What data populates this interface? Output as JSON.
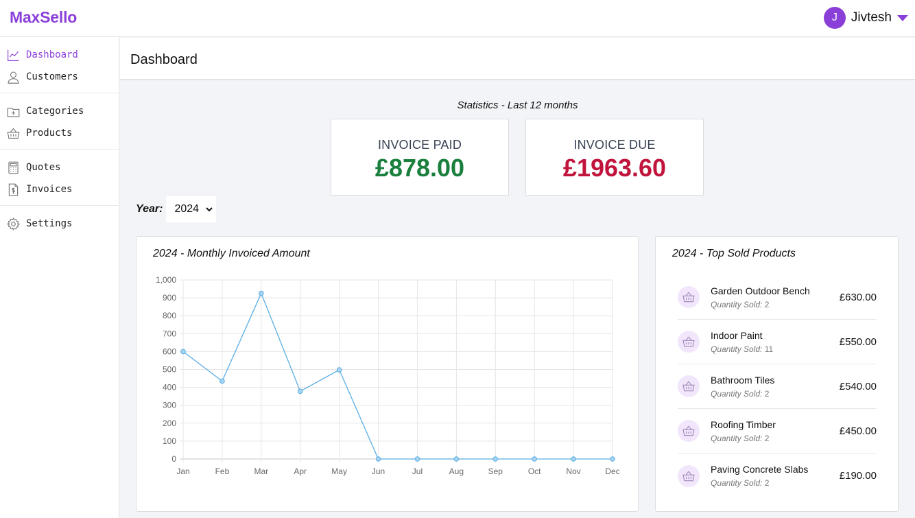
{
  "app": {
    "brand": "MaxSello"
  },
  "user": {
    "initial": "J",
    "name": "Jivtesh"
  },
  "sidebar": {
    "items": [
      {
        "label": "Dashboard",
        "icon": "chart-line-icon",
        "active": true
      },
      {
        "label": "Customers",
        "icon": "user-icon"
      },
      {
        "label": "Categories",
        "icon": "folder-plus-icon"
      },
      {
        "label": "Products",
        "icon": "basket-icon"
      },
      {
        "label": "Quotes",
        "icon": "calculator-icon"
      },
      {
        "label": "Invoices",
        "icon": "invoice-dollar-icon"
      },
      {
        "label": "Settings",
        "icon": "gear-icon"
      }
    ]
  },
  "page": {
    "title": "Dashboard"
  },
  "stats": {
    "heading": "Statistics - Last 12 months",
    "paid": {
      "label": "INVOICE PAID",
      "value": "£878.00",
      "color": "#1a7f3c"
    },
    "due": {
      "label": "INVOICE DUE",
      "value": "£1963.60",
      "color": "#c0143c"
    }
  },
  "year_filter": {
    "label": "Year:",
    "selected": "2024"
  },
  "monthly_chart": {
    "title": "2024 - Monthly Invoiced Amount"
  },
  "chart_data": {
    "type": "line",
    "categories": [
      "Jan",
      "Feb",
      "Mar",
      "Apr",
      "May",
      "Jun",
      "Jul",
      "Aug",
      "Sep",
      "Oct",
      "Nov",
      "Dec"
    ],
    "series": [
      {
        "values": [
          600,
          435,
          925,
          378,
          498,
          0,
          0,
          0,
          0,
          0,
          0,
          0
        ],
        "color": "#59ade3"
      }
    ],
    "ylim": [
      0,
      1000
    ],
    "yticks": [
      "0",
      "100",
      "200",
      "300",
      "400",
      "500",
      "600",
      "700",
      "800",
      "900",
      "1,000"
    ],
    "grid": true
  },
  "top_products": {
    "title": "2024 - Top Sold Products",
    "qty_label": "Quantity Sold:",
    "items": [
      {
        "name": "Garden Outdoor Bench",
        "qty": "2",
        "price": "£630.00"
      },
      {
        "name": "Indoor Paint",
        "qty": "11",
        "price": "£550.00"
      },
      {
        "name": "Bathroom Tiles",
        "qty": "2",
        "price": "£540.00"
      },
      {
        "name": "Roofing Timber",
        "qty": "2",
        "price": "£450.00"
      },
      {
        "name": "Paving Concrete Slabs",
        "qty": "2",
        "price": "£190.00"
      }
    ]
  }
}
